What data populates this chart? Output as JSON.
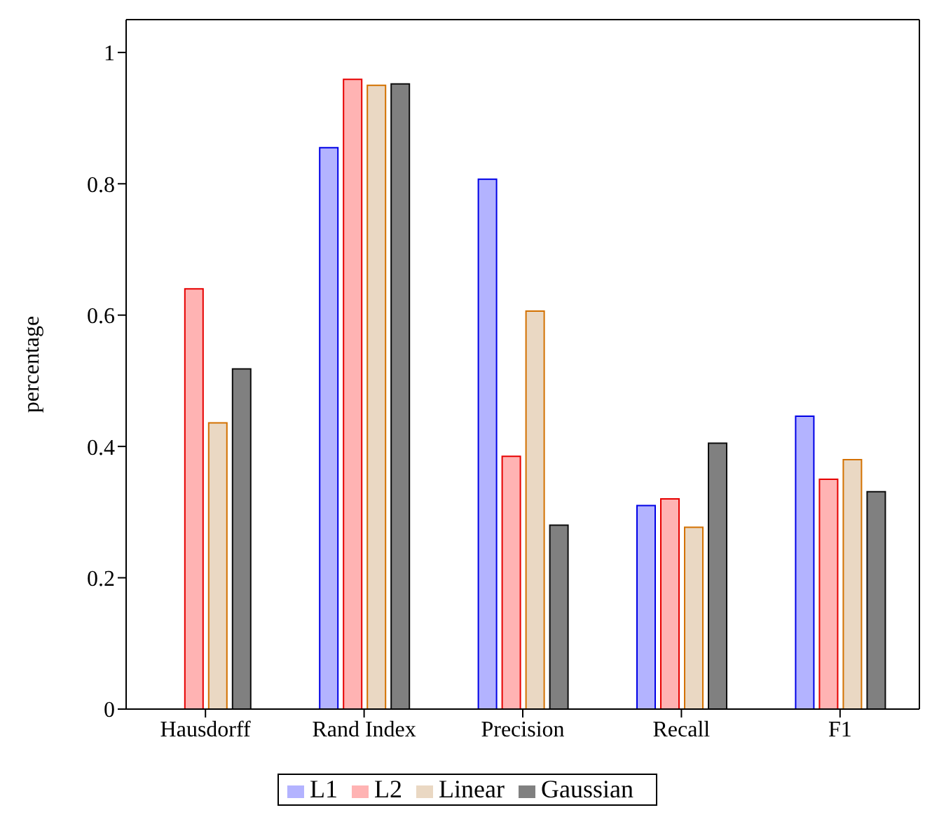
{
  "chart_data": {
    "type": "bar",
    "ylabel": "percentage",
    "categories": [
      "Hausdorff",
      "Rand Index",
      "Precision",
      "Recall",
      "F1"
    ],
    "series": [
      {
        "name": "L1",
        "color": "#b3b3ff",
        "values": [
          0,
          0.855,
          0.807,
          0.31,
          0.446
        ]
      },
      {
        "name": "L2",
        "color": "#ffb3b3",
        "values": [
          0.64,
          0.959,
          0.385,
          0.32,
          0.35
        ]
      },
      {
        "name": "Linear",
        "color": "#ead8c3",
        "values": [
          0.436,
          0.95,
          0.606,
          0.277,
          0.38
        ]
      },
      {
        "name": "Gaussian",
        "color": "#808080",
        "values": [
          0.518,
          0.952,
          0.28,
          0.405,
          0.331
        ]
      }
    ],
    "ylim": [
      0,
      1.05
    ],
    "yticks": [
      0,
      0.2,
      0.4,
      0.6,
      0.8,
      1
    ],
    "grid": false,
    "legend": "bottom"
  }
}
